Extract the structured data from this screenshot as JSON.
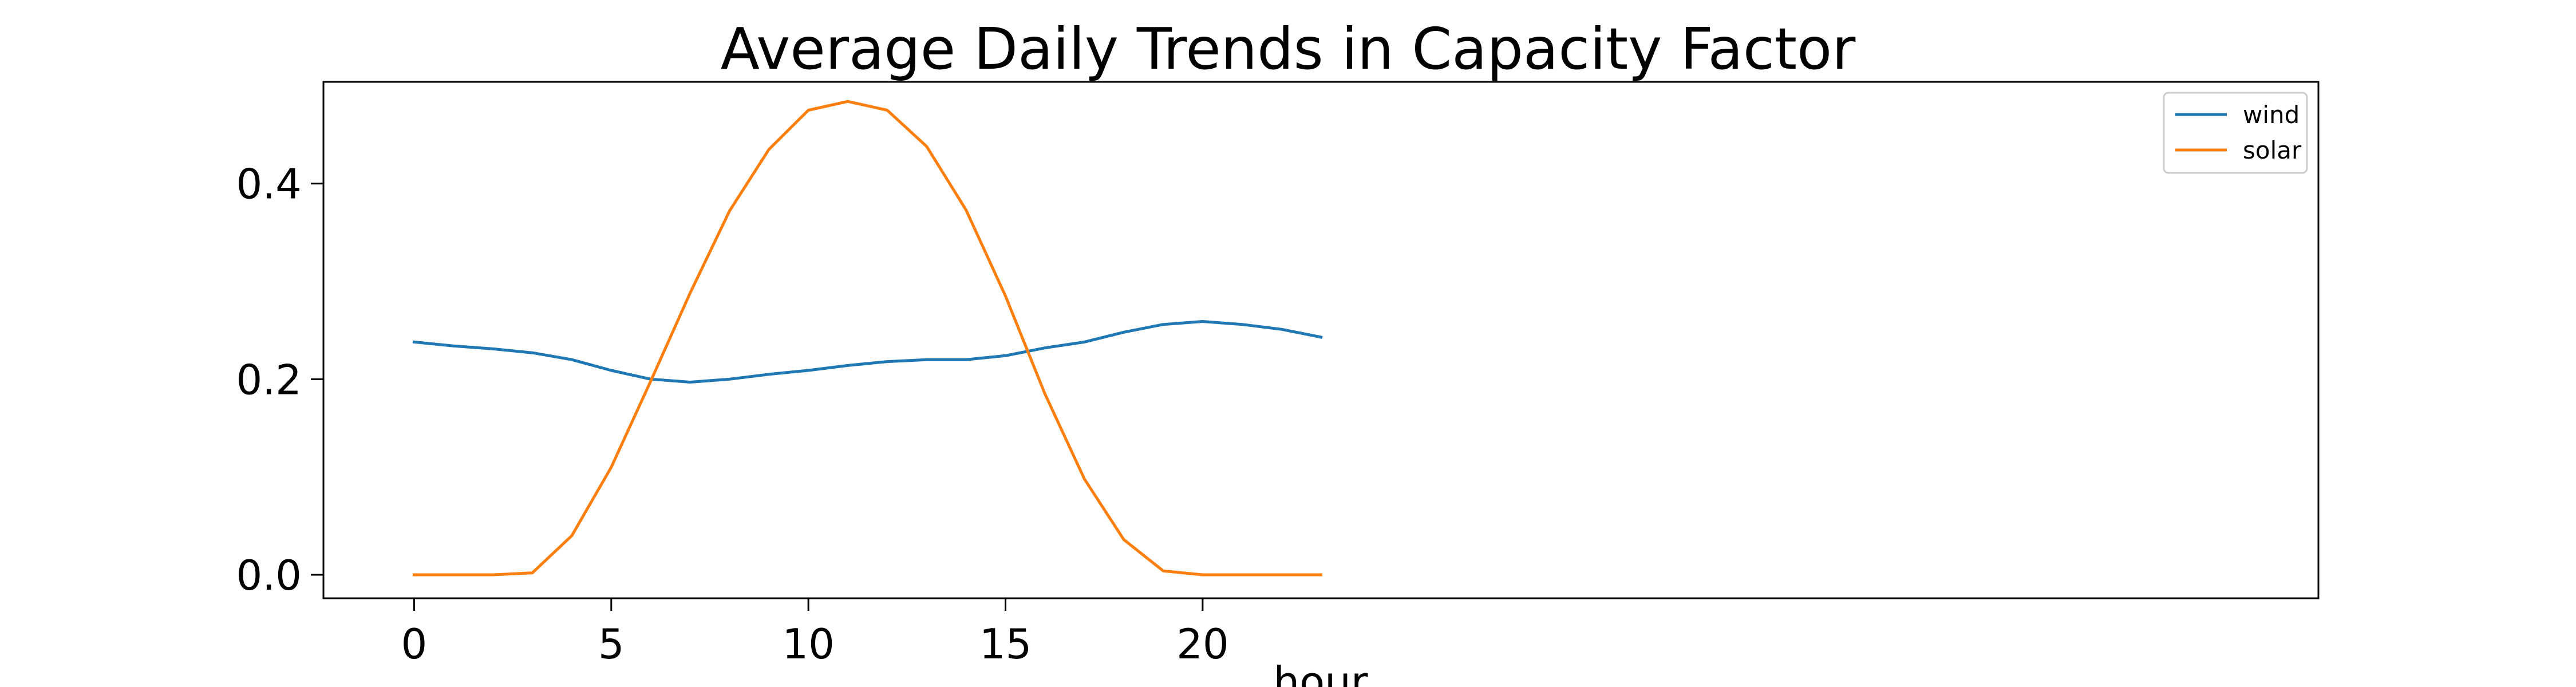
{
  "chart_data": {
    "type": "line",
    "title": "Average Daily Trends in Capacity Factor",
    "xlabel": "hour",
    "ylabel": "",
    "x": [
      0,
      1,
      2,
      3,
      4,
      5,
      6,
      7,
      8,
      9,
      10,
      11,
      12,
      13,
      14,
      15,
      16,
      17,
      18,
      19,
      20,
      21,
      22,
      23
    ],
    "xlim": [
      -2.3,
      48.3
    ],
    "ylim": [
      -0.024,
      0.504
    ],
    "xticks": [
      0,
      5,
      10,
      15,
      20
    ],
    "xtick_labels": [
      "0",
      "5",
      "10",
      "15",
      "20"
    ],
    "yticks": [
      0.0,
      0.2,
      0.4
    ],
    "ytick_labels": [
      "0.0",
      "0.2",
      "0.4"
    ],
    "grid": false,
    "legend_position": "top-right",
    "series": [
      {
        "name": "wind",
        "color": "#1f77b4",
        "values": [
          0.238,
          0.234,
          0.231,
          0.227,
          0.22,
          0.209,
          0.2,
          0.197,
          0.2,
          0.205,
          0.209,
          0.214,
          0.218,
          0.22,
          0.22,
          0.224,
          0.232,
          0.238,
          0.248,
          0.256,
          0.259,
          0.256,
          0.251,
          0.243
        ]
      },
      {
        "name": "solar",
        "color": "#ff7f0e",
        "values": [
          0.0,
          0.0,
          0.0,
          0.002,
          0.04,
          0.11,
          0.198,
          0.288,
          0.372,
          0.435,
          0.475,
          0.484,
          0.475,
          0.438,
          0.373,
          0.285,
          0.185,
          0.098,
          0.036,
          0.004,
          0.0,
          0.0,
          0.0,
          0.0
        ]
      }
    ]
  }
}
